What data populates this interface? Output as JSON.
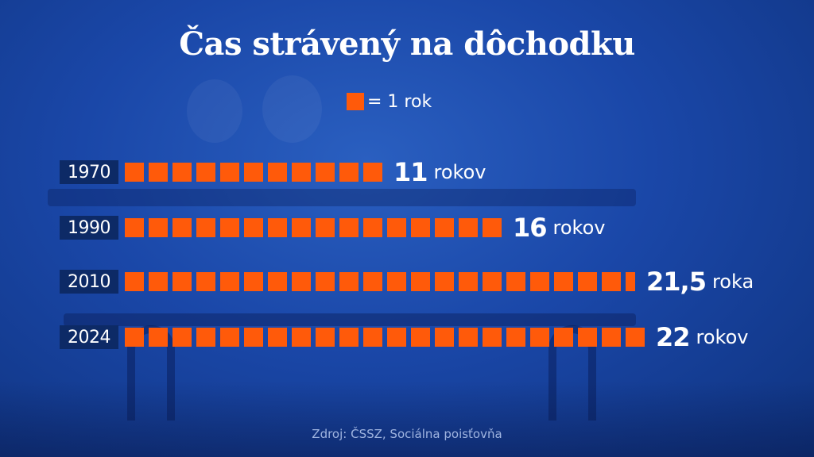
{
  "title": "Čas strávený na dôchodku",
  "legend": {
    "label": "= 1 rok"
  },
  "source": "Zdroj: ČSSZ, Sociálna poisťovňa",
  "colors": {
    "square": "#ff5a0a",
    "background": "#1a47a8",
    "year_box": "#0d2a66"
  },
  "chart_data": {
    "type": "bar",
    "title": "Čas strávený na dôchodku",
    "unit": "= 1 rok",
    "categories": [
      "1970",
      "1990",
      "2010",
      "2024"
    ],
    "values": [
      11,
      16,
      21.5,
      22
    ],
    "labels": [
      {
        "number": "11",
        "unit": "rokov"
      },
      {
        "number": "16",
        "unit": "rokov"
      },
      {
        "number": "21,5",
        "unit": "roka"
      },
      {
        "number": "22",
        "unit": "rokov"
      }
    ]
  }
}
